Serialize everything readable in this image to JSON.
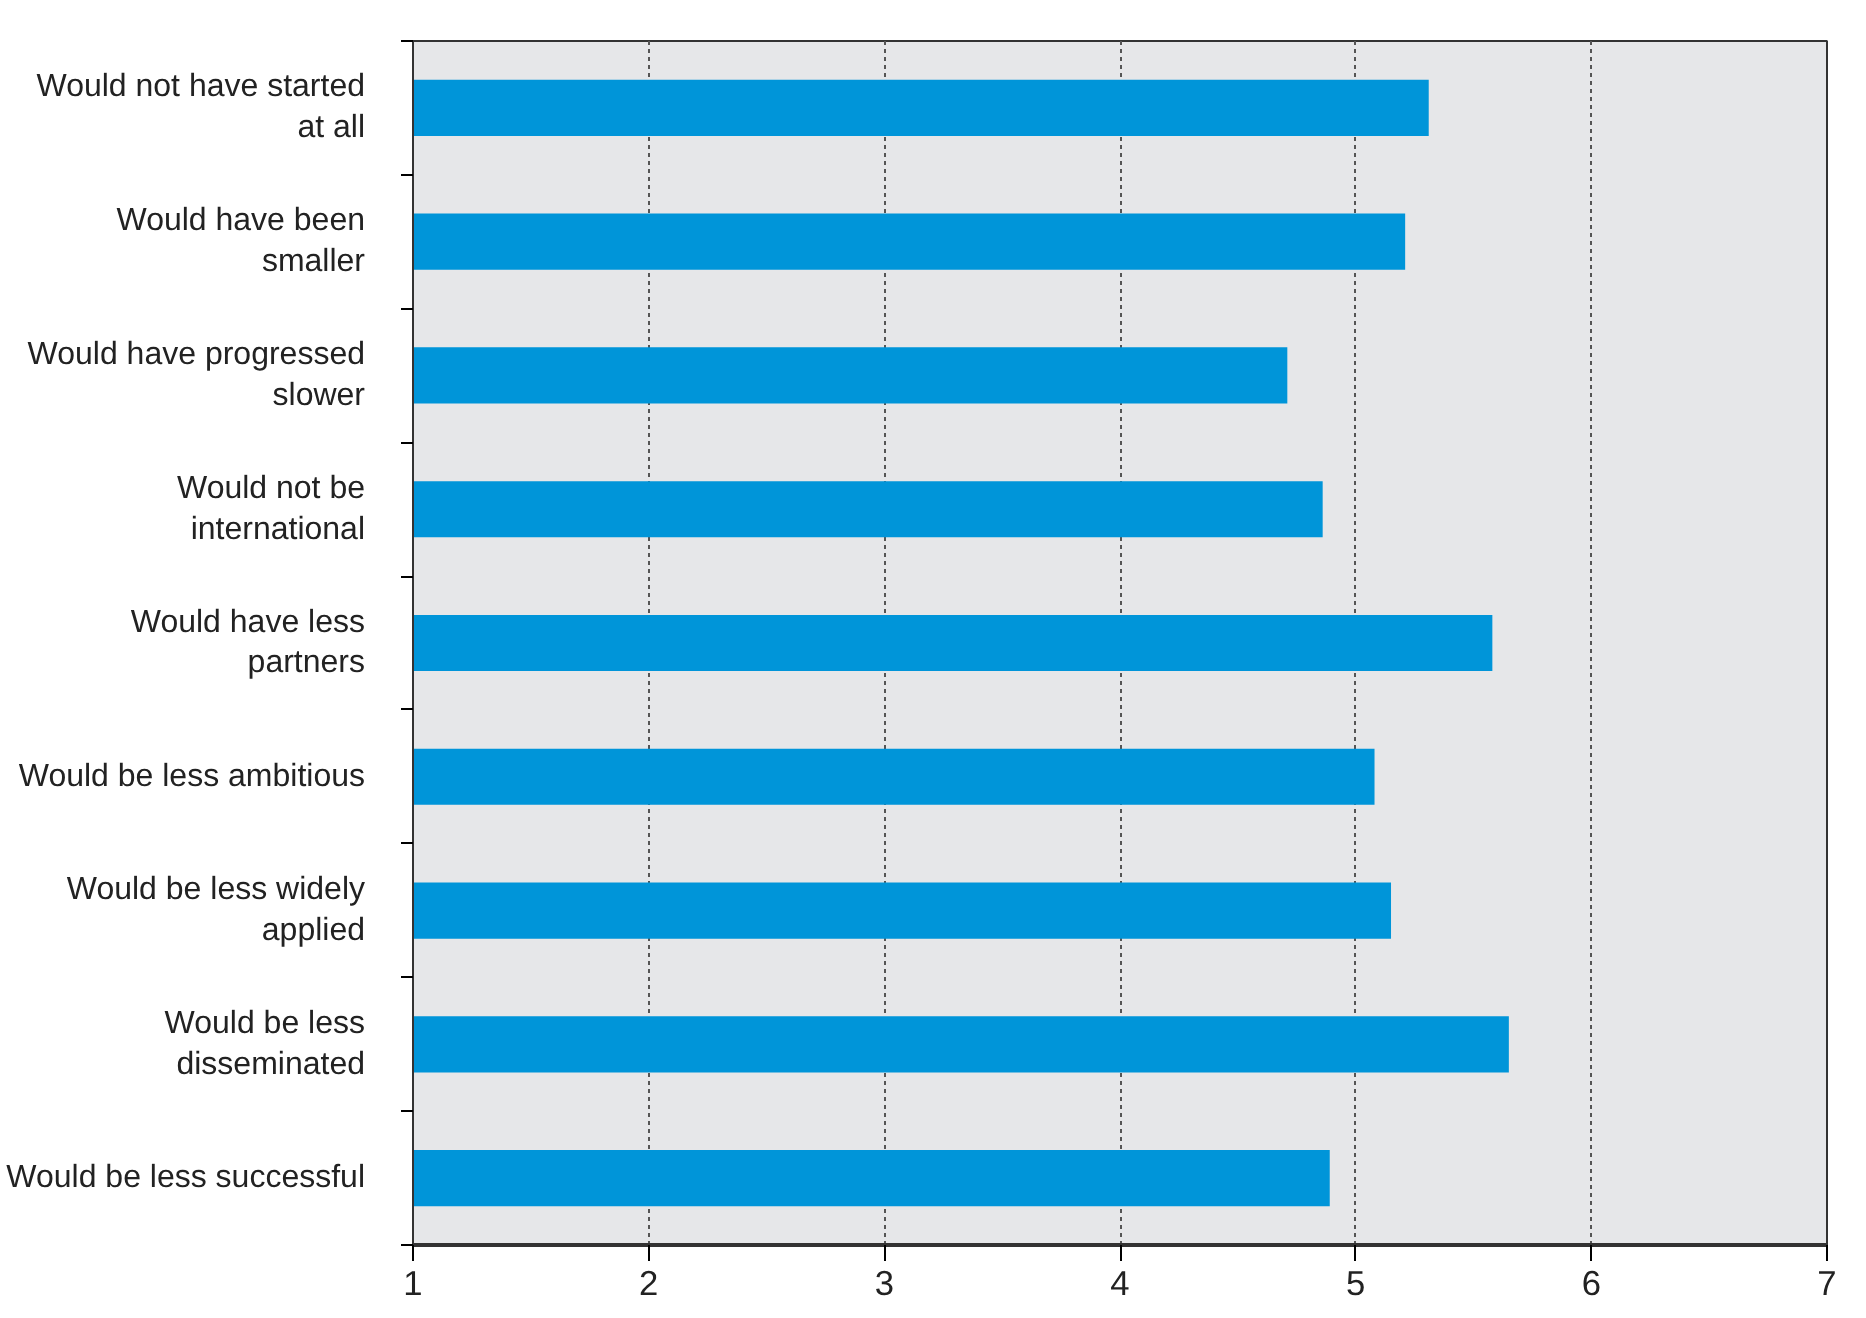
{
  "chart_data": {
    "type": "bar",
    "orientation": "horizontal",
    "categories": [
      "Would not have started\nat all",
      "Would have been\nsmaller",
      "Would have progressed\nslower",
      "Would not be\ninternational",
      "Would have less\npartners",
      "Would be less ambitious",
      "Would be less widely\napplied",
      "Would be less\ndisseminated",
      "Would be less successful"
    ],
    "values": [
      5.31,
      5.21,
      4.71,
      4.86,
      5.58,
      5.08,
      5.15,
      5.65,
      4.89
    ],
    "color": "#0095d9",
    "xlim": [
      1,
      7
    ],
    "xticks": [
      1,
      2,
      3,
      4,
      5,
      6,
      7
    ],
    "grid": "x"
  }
}
